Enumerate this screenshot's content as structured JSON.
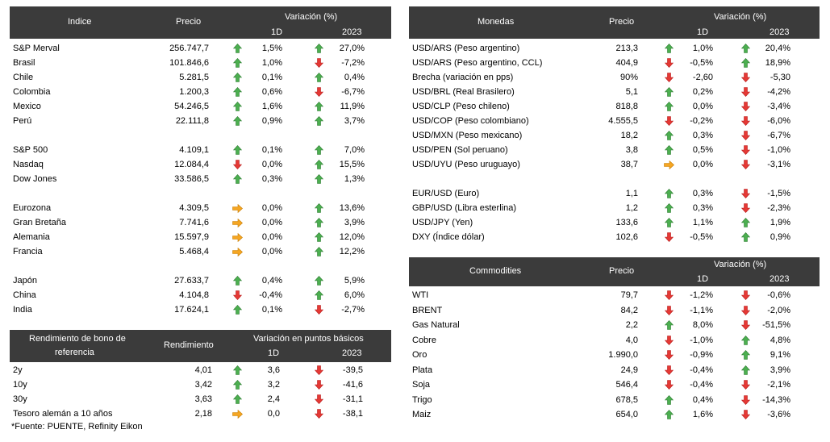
{
  "colors": {
    "header_bg": "#3b3b3b",
    "up": "#4caf50",
    "down": "#e53935",
    "flat": "#f5a623"
  },
  "indices": {
    "header": {
      "name": "Indice",
      "price": "Precio",
      "variation": "Variación (%)",
      "d1": "1D",
      "ytd": "2023"
    },
    "rows": [
      {
        "name": "S&P Merval",
        "price": "256.747,7",
        "d1_dir": "up",
        "d1": "1,5%",
        "ytd_dir": "up",
        "ytd": "27,0%"
      },
      {
        "name": "Brasil",
        "price": "101.846,6",
        "d1_dir": "up",
        "d1": "1,0%",
        "ytd_dir": "down",
        "ytd": "-7,2%"
      },
      {
        "name": "Chile",
        "price": "5.281,5",
        "d1_dir": "up",
        "d1": "0,1%",
        "ytd_dir": "up",
        "ytd": "0,4%"
      },
      {
        "name": "Colombia",
        "price": "1.200,3",
        "d1_dir": "up",
        "d1": "0,6%",
        "ytd_dir": "down",
        "ytd": "-6,7%"
      },
      {
        "name": "Mexico",
        "price": "54.246,5",
        "d1_dir": "up",
        "d1": "1,6%",
        "ytd_dir": "up",
        "ytd": "11,9%"
      },
      {
        "name": "Perú",
        "price": "22.111,8",
        "d1_dir": "up",
        "d1": "0,9%",
        "ytd_dir": "up",
        "ytd": "3,7%"
      },
      null,
      {
        "name": "S&P 500",
        "price": "4.109,1",
        "d1_dir": "up",
        "d1": "0,1%",
        "ytd_dir": "up",
        "ytd": "7,0%"
      },
      {
        "name": "Nasdaq",
        "price": "12.084,4",
        "d1_dir": "down",
        "d1": "0,0%",
        "ytd_dir": "up",
        "ytd": "15,5%"
      },
      {
        "name": "Dow Jones",
        "price": "33.586,5",
        "d1_dir": "up",
        "d1": "0,3%",
        "ytd_dir": "up",
        "ytd": "1,3%"
      },
      null,
      {
        "name": "Eurozona",
        "price": "4.309,5",
        "d1_dir": "flat",
        "d1": "0,0%",
        "ytd_dir": "up",
        "ytd": "13,6%"
      },
      {
        "name": "Gran Bretaña",
        "price": "7.741,6",
        "d1_dir": "flat",
        "d1": "0,0%",
        "ytd_dir": "up",
        "ytd": "3,9%"
      },
      {
        "name": "Alemania",
        "price": "15.597,9",
        "d1_dir": "flat",
        "d1": "0,0%",
        "ytd_dir": "up",
        "ytd": "12,0%"
      },
      {
        "name": "Francia",
        "price": "5.468,4",
        "d1_dir": "flat",
        "d1": "0,0%",
        "ytd_dir": "up",
        "ytd": "12,2%"
      },
      null,
      {
        "name": "Japón",
        "price": "27.633,7",
        "d1_dir": "up",
        "d1": "0,4%",
        "ytd_dir": "up",
        "ytd": "5,9%"
      },
      {
        "name": "China",
        "price": "4.104,8",
        "d1_dir": "down",
        "d1": "-0,4%",
        "ytd_dir": "up",
        "ytd": "6,0%"
      },
      {
        "name": "India",
        "price": "17.624,1",
        "d1_dir": "up",
        "d1": "0,1%",
        "ytd_dir": "down",
        "ytd": "-2,7%"
      }
    ]
  },
  "bonds": {
    "header": {
      "name_line1": "Rendimiento de bono de",
      "name_line2": "referencia",
      "yield": "Rendimiento",
      "variation": "Variación en puntos básicos",
      "d1": "1D",
      "ytd": "2023"
    },
    "rows": [
      {
        "name": "2y",
        "price": "4,01",
        "d1_dir": "up",
        "d1": "3,6",
        "ytd_dir": "down",
        "ytd": "-39,5"
      },
      {
        "name": "10y",
        "price": "3,42",
        "d1_dir": "up",
        "d1": "3,2",
        "ytd_dir": "down",
        "ytd": "-41,6"
      },
      {
        "name": "30y",
        "price": "3,63",
        "d1_dir": "up",
        "d1": "2,4",
        "ytd_dir": "down",
        "ytd": "-31,1"
      },
      {
        "name": "Tesoro alemán a 10 años",
        "price": "2,18",
        "d1_dir": "flat",
        "d1": "0,0",
        "ytd_dir": "down",
        "ytd": "-38,1"
      }
    ]
  },
  "currencies": {
    "header": {
      "name": "Monedas",
      "price": "Precio",
      "variation": "Variación (%)",
      "d1": "1D",
      "ytd": "2023"
    },
    "rows": [
      {
        "name": "USD/ARS (Peso argentino)",
        "price": "213,3",
        "d1_dir": "up",
        "d1": "1,0%",
        "ytd_dir": "up",
        "ytd": "20,4%"
      },
      {
        "name": "USD/ARS (Peso argentino, CCL)",
        "price": "404,9",
        "d1_dir": "down",
        "d1": "-0,5%",
        "ytd_dir": "up",
        "ytd": "18,9%"
      },
      {
        "name": "Brecha (variación en pps)",
        "price": "90%",
        "d1_dir": "down",
        "d1": "-2,60",
        "ytd_dir": "down",
        "ytd": "-5,30"
      },
      {
        "name": "USD/BRL (Real Brasilero)",
        "price": "5,1",
        "d1_dir": "up",
        "d1": "0,2%",
        "ytd_dir": "down",
        "ytd": "-4,2%"
      },
      {
        "name": "USD/CLP (Peso chileno)",
        "price": "818,8",
        "d1_dir": "up",
        "d1": "0,0%",
        "ytd_dir": "down",
        "ytd": "-3,4%"
      },
      {
        "name": "USD/COP (Peso colombiano)",
        "price": "4.555,5",
        "d1_dir": "down",
        "d1": "-0,2%",
        "ytd_dir": "down",
        "ytd": "-6,0%"
      },
      {
        "name": "USD/MXN (Peso mexicano)",
        "price": "18,2",
        "d1_dir": "up",
        "d1": "0,3%",
        "ytd_dir": "down",
        "ytd": "-6,7%"
      },
      {
        "name": "USD/PEN (Sol peruano)",
        "price": "3,8",
        "d1_dir": "up",
        "d1": "0,5%",
        "ytd_dir": "down",
        "ytd": "-1,0%"
      },
      {
        "name": "USD/UYU (Peso uruguayo)",
        "price": "38,7",
        "d1_dir": "flat",
        "d1": "0,0%",
        "ytd_dir": "down",
        "ytd": "-3,1%"
      },
      null,
      {
        "name": "EUR/USD (Euro)",
        "price": "1,1",
        "d1_dir": "up",
        "d1": "0,3%",
        "ytd_dir": "down",
        "ytd": "-1,5%"
      },
      {
        "name": "GBP/USD (Libra esterlina)",
        "price": "1,2",
        "d1_dir": "up",
        "d1": "0,3%",
        "ytd_dir": "down",
        "ytd": "-2,3%"
      },
      {
        "name": "USD/JPY (Yen)",
        "price": "133,6",
        "d1_dir": "up",
        "d1": "1,1%",
        "ytd_dir": "up",
        "ytd": "1,9%"
      },
      {
        "name": "DXY (Índice dólar)",
        "price": "102,6",
        "d1_dir": "down",
        "d1": "-0,5%",
        "ytd_dir": "up",
        "ytd": "0,9%"
      }
    ]
  },
  "commodities": {
    "header": {
      "name": "Commodities",
      "price": "Precio",
      "variation": "Variación (%)",
      "d1": "1D",
      "ytd": "2023"
    },
    "rows": [
      {
        "name": "WTI",
        "price": "79,7",
        "d1_dir": "down",
        "d1": "-1,2%",
        "ytd_dir": "down",
        "ytd": "-0,6%"
      },
      {
        "name": "BRENT",
        "price": "84,2",
        "d1_dir": "down",
        "d1": "-1,1%",
        "ytd_dir": "down",
        "ytd": "-2,0%"
      },
      {
        "name": "Gas Natural",
        "price": "2,2",
        "d1_dir": "up",
        "d1": "8,0%",
        "ytd_dir": "down",
        "ytd": "-51,5%"
      },
      {
        "name": "Cobre",
        "price": "4,0",
        "d1_dir": "down",
        "d1": "-1,0%",
        "ytd_dir": "up",
        "ytd": "4,8%"
      },
      {
        "name": "Oro",
        "price": "1.990,0",
        "d1_dir": "down",
        "d1": "-0,9%",
        "ytd_dir": "up",
        "ytd": "9,1%"
      },
      {
        "name": "Plata",
        "price": "24,9",
        "d1_dir": "down",
        "d1": "-0,4%",
        "ytd_dir": "up",
        "ytd": "3,9%"
      },
      {
        "name": "Soja",
        "price": "546,4",
        "d1_dir": "down",
        "d1": "-0,4%",
        "ytd_dir": "down",
        "ytd": "-2,1%"
      },
      {
        "name": "Trigo",
        "price": "678,5",
        "d1_dir": "up",
        "d1": "0,4%",
        "ytd_dir": "down",
        "ytd": "-14,3%"
      },
      {
        "name": "Maiz",
        "price": "654,0",
        "d1_dir": "up",
        "d1": "1,6%",
        "ytd_dir": "down",
        "ytd": "-3,6%"
      }
    ]
  },
  "footnote": "*Fuente: PUENTE, Refinity Eikon"
}
